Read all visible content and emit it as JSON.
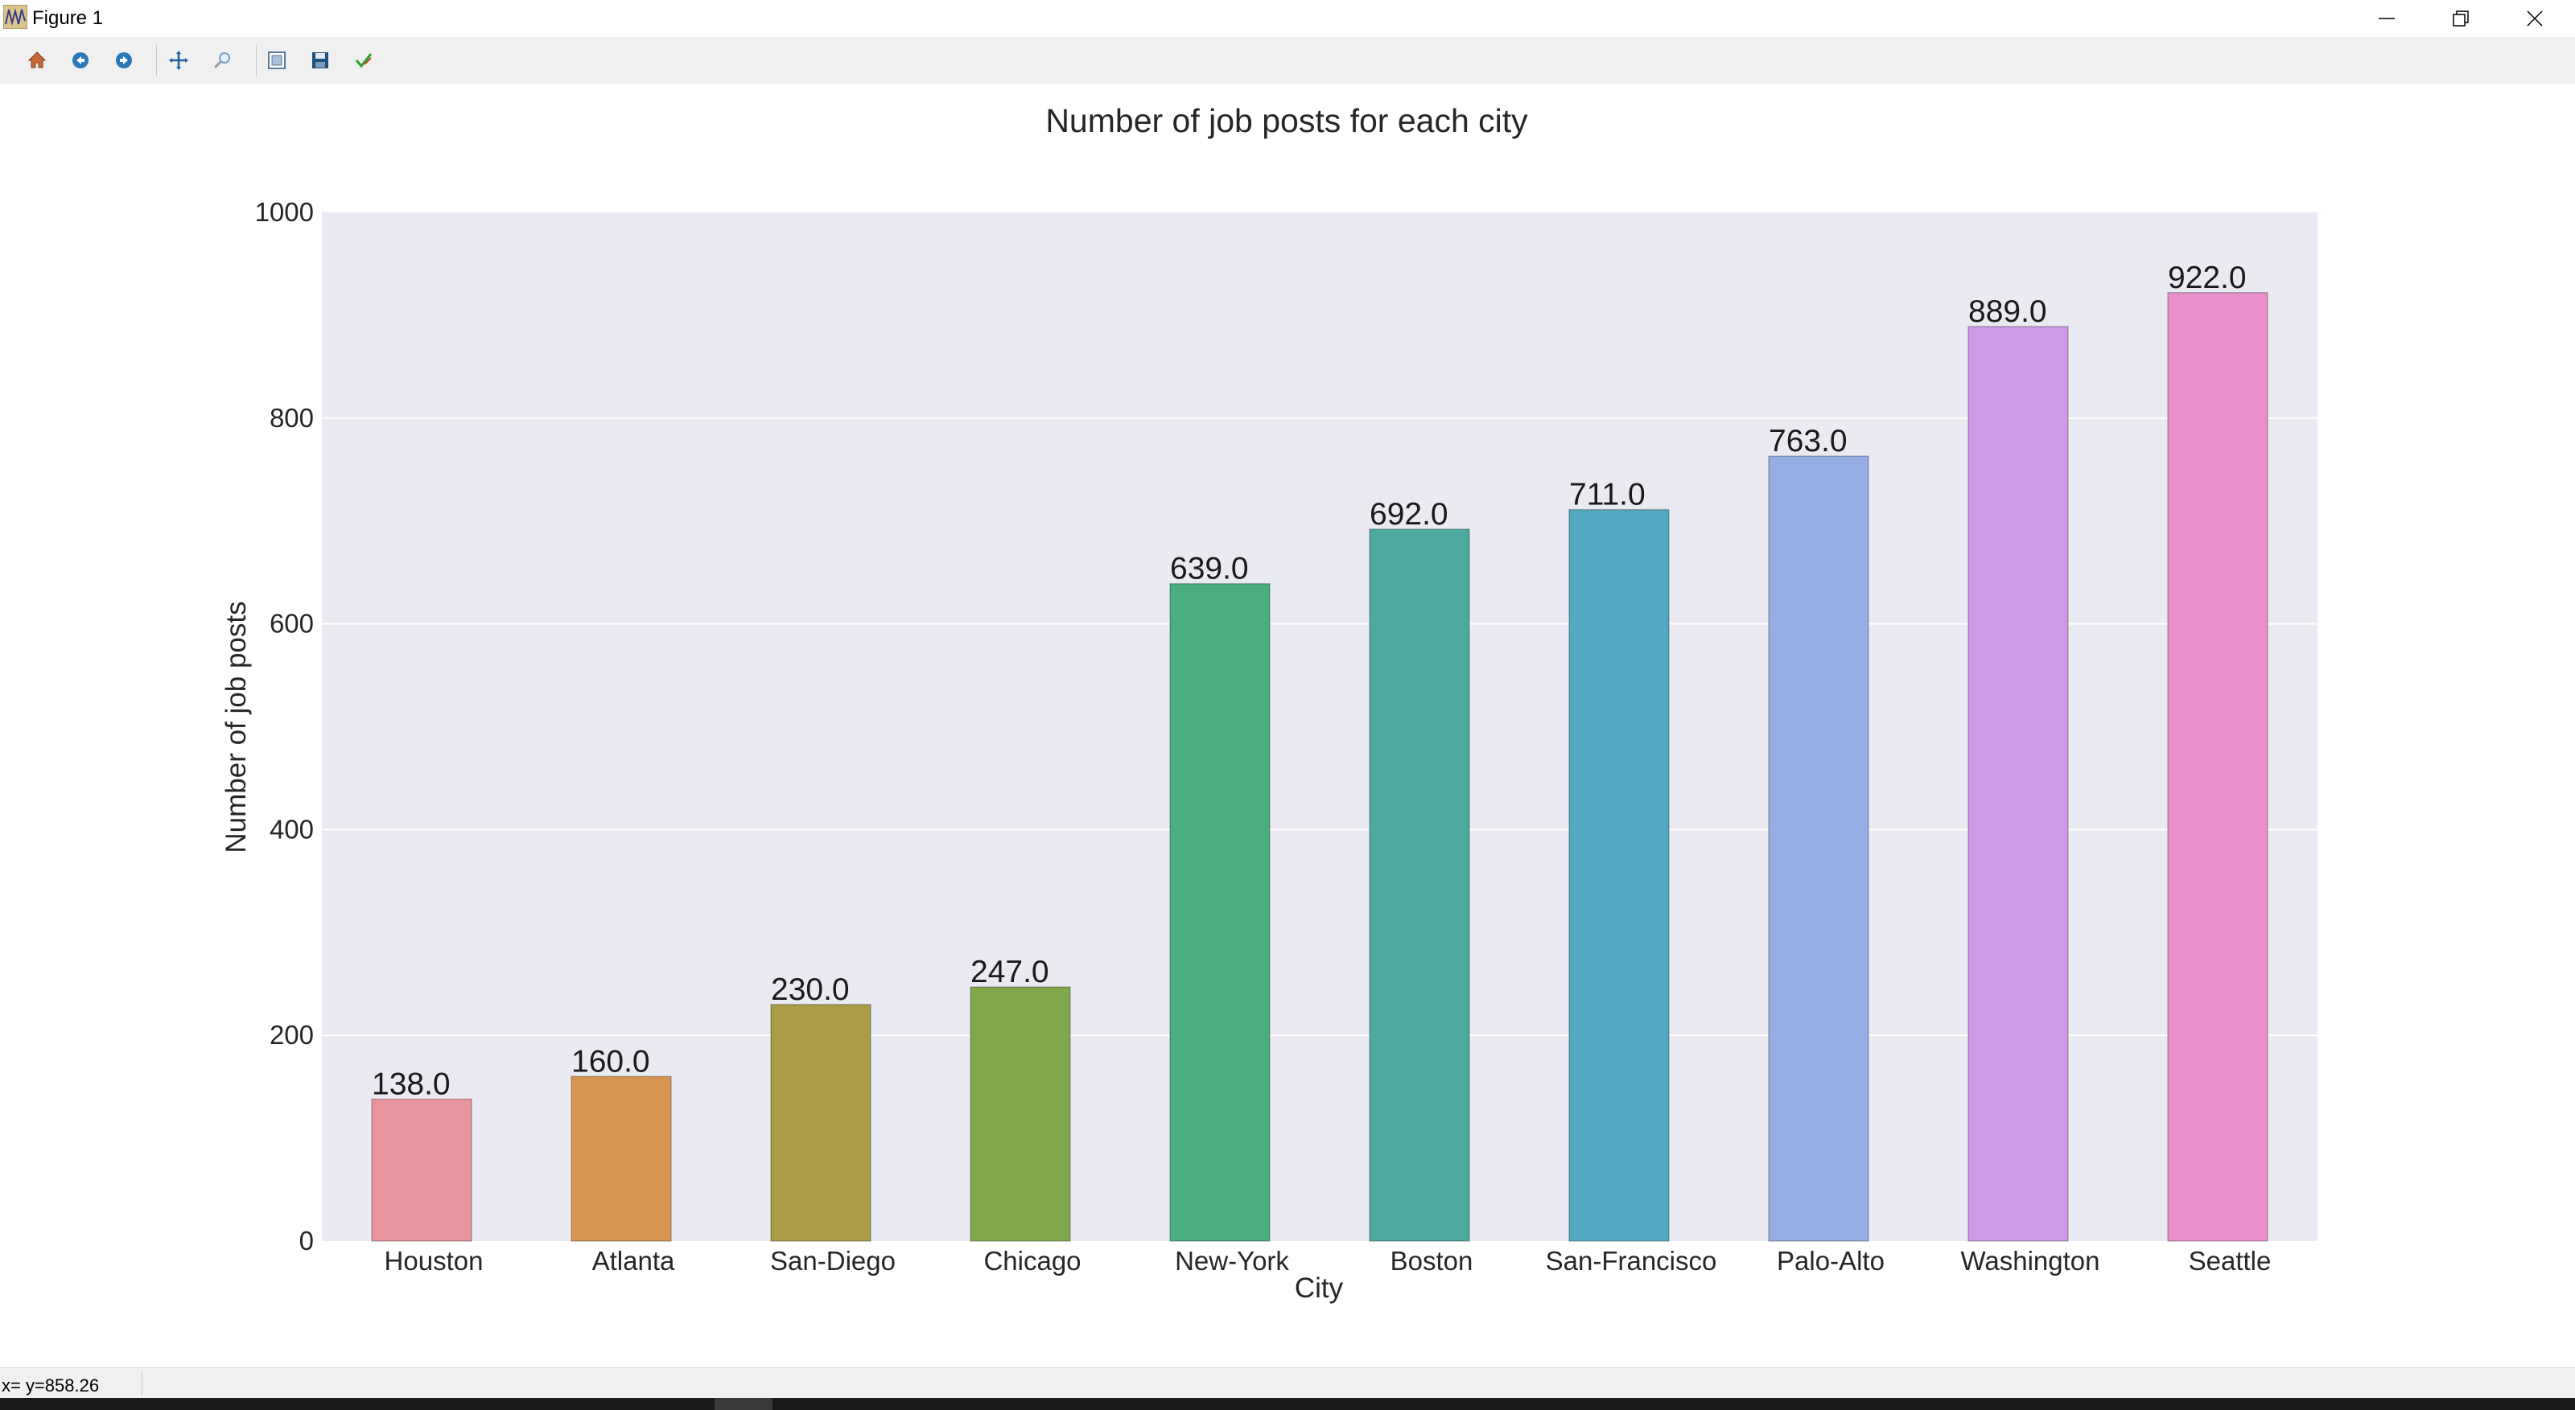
{
  "window": {
    "title": "Figure 1",
    "icon": "matplotlib-figure-icon"
  },
  "window_controls": [
    {
      "name": "minimize-button",
      "icon": "minimize-icon"
    },
    {
      "name": "maximize-button",
      "icon": "restore-icon"
    },
    {
      "name": "close-button",
      "icon": "close-icon"
    }
  ],
  "toolbar": {
    "buttons": [
      {
        "name": "home-button",
        "icon": "home-icon"
      },
      {
        "name": "back-button",
        "icon": "back-arrow-icon"
      },
      {
        "name": "forward-button",
        "icon": "forward-arrow-icon"
      },
      {
        "name": "pan-button",
        "icon": "pan-icon"
      },
      {
        "name": "zoom-button",
        "icon": "zoom-icon"
      },
      {
        "name": "subplots-button",
        "icon": "subplots-icon"
      },
      {
        "name": "save-button",
        "icon": "save-icon"
      },
      {
        "name": "edit-button",
        "icon": "edit-check-icon"
      }
    ]
  },
  "status": {
    "coordinates": "x= y=858.26"
  },
  "chart_data": {
    "type": "bar",
    "title": "Number of job posts for each city",
    "xlabel": "City",
    "ylabel": "Number of job posts",
    "categories": [
      "Houston",
      "Atlanta",
      "San-Diego",
      "Chicago",
      "New-York",
      "Boston",
      "San-Francisco",
      "Palo-Alto",
      "Washington",
      "Seattle"
    ],
    "values": [
      138.0,
      160.0,
      230.0,
      247.0,
      639.0,
      692.0,
      711.0,
      763.0,
      889.0,
      922.0
    ],
    "value_labels": [
      "138.0",
      "160.0",
      "230.0",
      "247.0",
      "639.0",
      "692.0",
      "711.0",
      "763.0",
      "889.0",
      "922.0"
    ],
    "colors": [
      "#e8949c",
      "#d89550",
      "#ab9c47",
      "#80a84a",
      "#4aae80",
      "#4ba9a0",
      "#51aac2",
      "#96aee4",
      "#ce99e6",
      "#ea8fca"
    ],
    "ylim": [
      0,
      1000
    ],
    "yticks": [
      0,
      200,
      400,
      600,
      800,
      1000
    ],
    "grid": true,
    "legend": false,
    "background": "#eaeaf2"
  }
}
